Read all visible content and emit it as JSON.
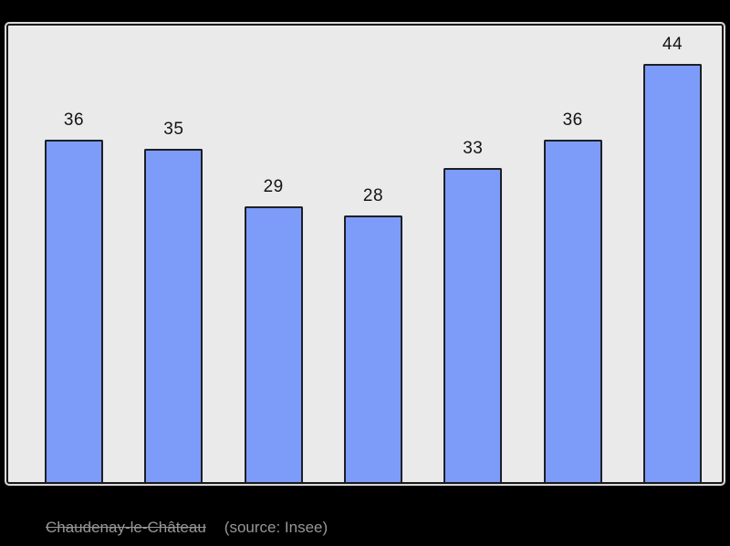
{
  "chart_data": {
    "type": "bar",
    "values": [
      36,
      35,
      29,
      28,
      33,
      36,
      44
    ],
    "bar_value_labels": [
      "36",
      "35",
      "29",
      "28",
      "33",
      "36",
      "44"
    ],
    "title": "",
    "xlabel": "",
    "ylabel": "",
    "ylim": [
      0,
      48
    ],
    "grid": false,
    "legend_position": "none",
    "caption": "Chaudenay-le-Château (source: Insee)"
  },
  "caption": {
    "name": "Chaudenay-le-Château",
    "source": "(source: Insee)"
  },
  "colors": {
    "outer_background": "#000000",
    "plot_background": "#eaeaea",
    "bar_fill": "#7d9bf8",
    "bar_border": "#1c1f26",
    "frame_border": "#1a1a1a",
    "value_label": "#141414",
    "caption_text": "#969696"
  }
}
